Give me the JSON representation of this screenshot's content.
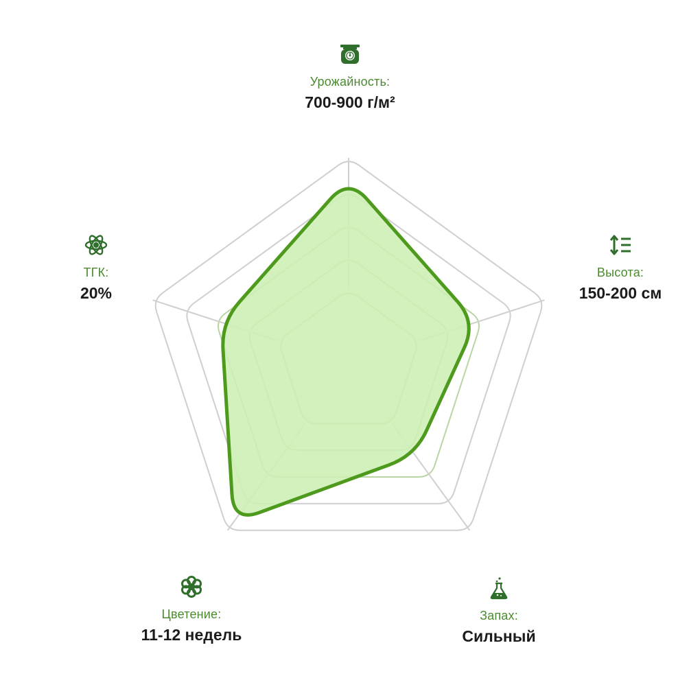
{
  "chart_data": {
    "type": "radar",
    "axes": [
      {
        "label": "Урожайность:",
        "value_text": "700-900 г/м²",
        "icon": "scale-icon"
      },
      {
        "label": "Высота:",
        "value_text": "150-200 см",
        "icon": "height-arrows-icon"
      },
      {
        "label": "Запах:",
        "value_text": "Сильный",
        "icon": "flask-icon"
      },
      {
        "label": "Цветение:",
        "value_text": "11-12 недель",
        "icon": "flower-icon"
      },
      {
        "label": "ТГК:",
        "value_text": "20%",
        "icon": "atom-icon"
      }
    ],
    "values": [
      0.9,
      0.65,
      0.55,
      0.95,
      0.65
    ],
    "scale_max": 1,
    "grid_rings": 5,
    "colors": {
      "fill": "#cdf0b6",
      "stroke": "#4e9a1d",
      "grid_outer": "#cfcfcf",
      "grid_inner": "#b7d6a4",
      "label": "#4b8a2e",
      "value": "#1b1b1b",
      "icon": "#2f6e2b"
    }
  }
}
